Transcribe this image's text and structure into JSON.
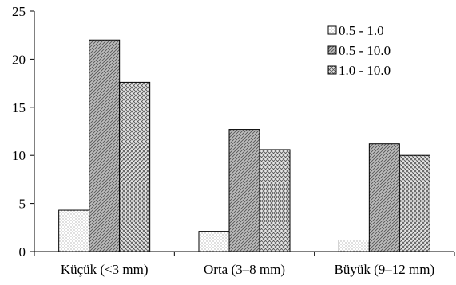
{
  "chart_data": {
    "type": "bar",
    "title": "",
    "xlabel": "",
    "ylabel": "",
    "ylim": [
      0,
      25
    ],
    "yticks": [
      0,
      5,
      10,
      15,
      20,
      25
    ],
    "grid": false,
    "legend_position": "top-right",
    "categories": [
      "Küçük (<3 mm)",
      "Orta (3–8 mm)",
      "Büyük (9–12 mm)"
    ],
    "series": [
      {
        "name": "0.5 - 1.0",
        "pattern": "dots",
        "values": [
          4.3,
          2.1,
          1.2
        ]
      },
      {
        "name": "0.5 - 10.0",
        "pattern": "diagonal-hatch",
        "values": [
          22.0,
          12.7,
          11.2
        ]
      },
      {
        "name": "1.0 - 10.0",
        "pattern": "cross-hatch",
        "values": [
          17.6,
          10.6,
          10.0
        ]
      }
    ]
  }
}
